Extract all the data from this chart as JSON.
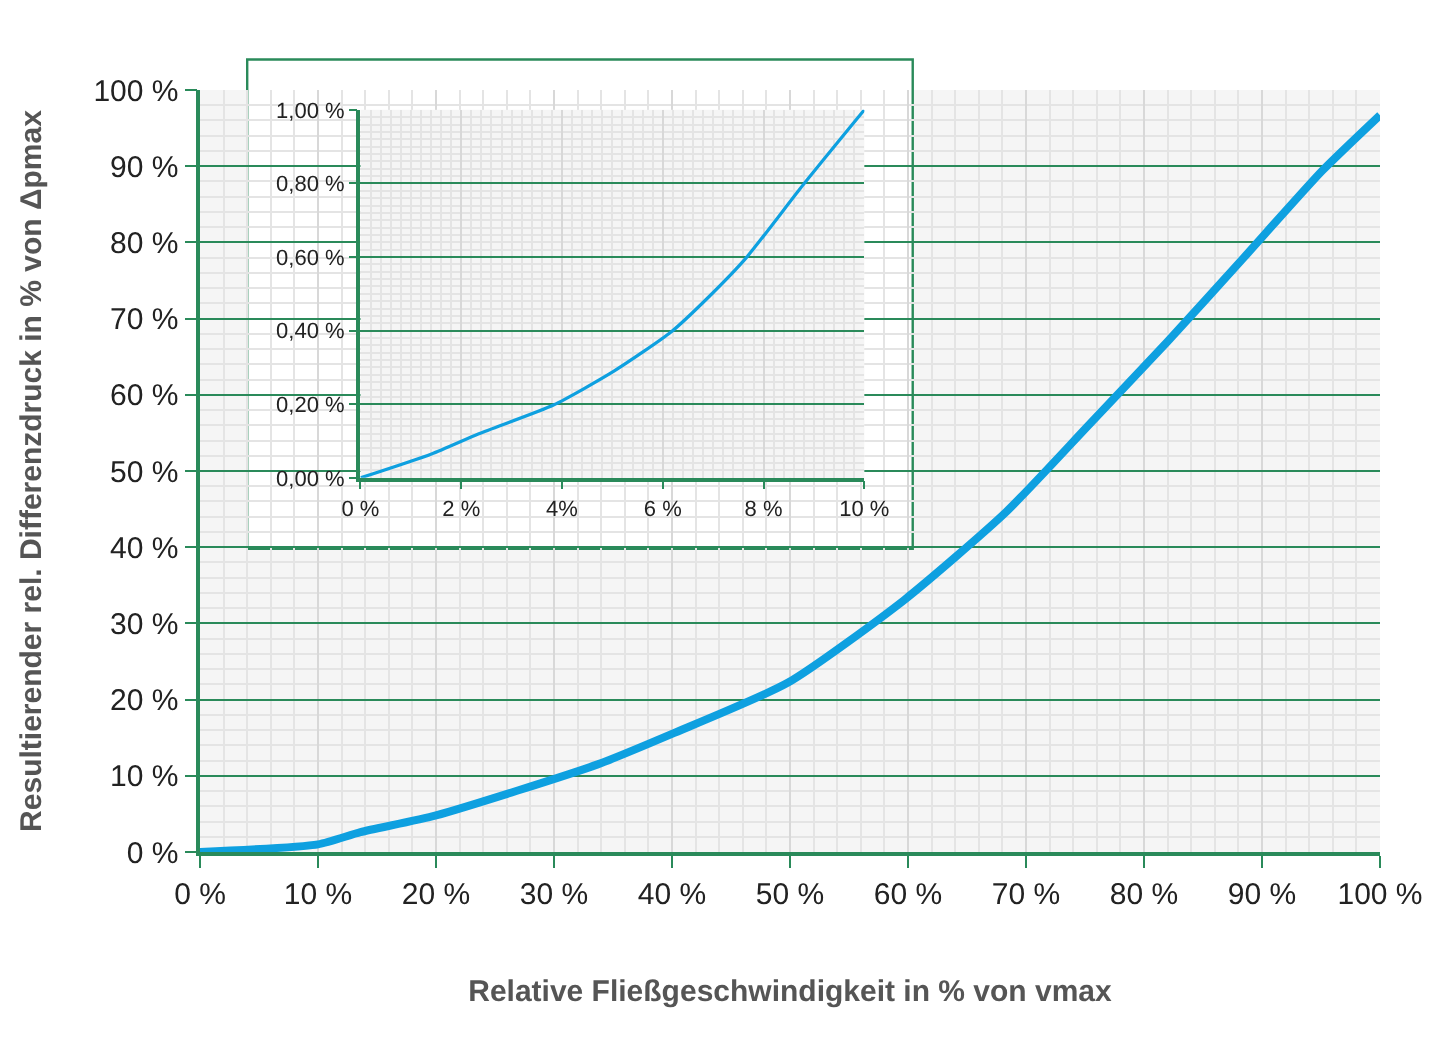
{
  "chart_data": [
    {
      "type": "line",
      "xlabel": "Relative Fließgeschwindigkeit in % von vmax",
      "ylabel": "Resultierender rel. Differenzdruck in % von Δpmax",
      "x": [
        0,
        10,
        13.6,
        20,
        33.7,
        40,
        49.8,
        59.7,
        68.3,
        75.3,
        82.0,
        88.4,
        95.1,
        100
      ],
      "series": [
        {
          "color": "#0ea0e0",
          "values": [
            0,
            1.0,
            2.6,
            4.8,
            11.5,
            15.5,
            22.2,
            33.1,
            44.6,
            56.0,
            67.0,
            77.9,
            89.4,
            96.7
          ]
        }
      ],
      "xlim": [
        0,
        100
      ],
      "ylim": [
        0,
        100
      ],
      "xticks": [
        {
          "value": 0,
          "label": "0 %"
        },
        {
          "value": 10,
          "label": "10 %"
        },
        {
          "value": 20,
          "label": "20 %"
        },
        {
          "value": 30,
          "label": "30 %"
        },
        {
          "value": 40,
          "label": "40 %"
        },
        {
          "value": 50,
          "label": "50 %"
        },
        {
          "value": 60,
          "label": "60 %"
        },
        {
          "value": 70,
          "label": "70 %"
        },
        {
          "value": 80,
          "label": "80 %"
        },
        {
          "value": 90,
          "label": "90 %"
        },
        {
          "value": 100,
          "label": "100 %"
        }
      ],
      "yticks": [
        {
          "value": 0,
          "label": "0 %"
        },
        {
          "value": 10,
          "label": "10 %"
        },
        {
          "value": 20,
          "label": "20 %"
        },
        {
          "value": 30,
          "label": "30 %"
        },
        {
          "value": 40,
          "label": "40 %"
        },
        {
          "value": 50,
          "label": "50 %"
        },
        {
          "value": 60,
          "label": "60 %"
        },
        {
          "value": 70,
          "label": "70 %"
        },
        {
          "value": 80,
          "label": "80 %"
        },
        {
          "value": 90,
          "label": "90 %"
        },
        {
          "value": 100,
          "label": "100 %"
        }
      ],
      "grid": true,
      "marker": "none",
      "line_style": "solid"
    },
    {
      "type": "line",
      "x": [
        0,
        1.41,
        2.35,
        3.83,
        5.03,
        6.17,
        6.9,
        7.65,
        8.79,
        10
      ],
      "series": [
        {
          "color": "#0ea0e0",
          "values": [
            0,
            0.065,
            0.12,
            0.198,
            0.29,
            0.397,
            0.49,
            0.597,
            0.797,
            1.0
          ]
        }
      ],
      "xlim": [
        0,
        10
      ],
      "ylim": [
        0,
        1
      ],
      "xticks": [
        {
          "value": 0,
          "label": "0 %"
        },
        {
          "value": 2,
          "label": "2 %"
        },
        {
          "value": 4,
          "label": "4%"
        },
        {
          "value": 6,
          "label": "6 %"
        },
        {
          "value": 8,
          "label": "8 %"
        },
        {
          "value": 10,
          "label": "10 %"
        }
      ],
      "yticks": [
        {
          "value": 0,
          "label": "0,00 %"
        },
        {
          "value": 0.2,
          "label": "0,20 %"
        },
        {
          "value": 0.4,
          "label": "0,40 %"
        },
        {
          "value": 0.6,
          "label": "0,60 %"
        },
        {
          "value": 0.8,
          "label": "0,80 %"
        },
        {
          "value": 1,
          "label": "1,00 %"
        }
      ],
      "grid": true,
      "marker": "none",
      "line_style": "solid"
    }
  ]
}
